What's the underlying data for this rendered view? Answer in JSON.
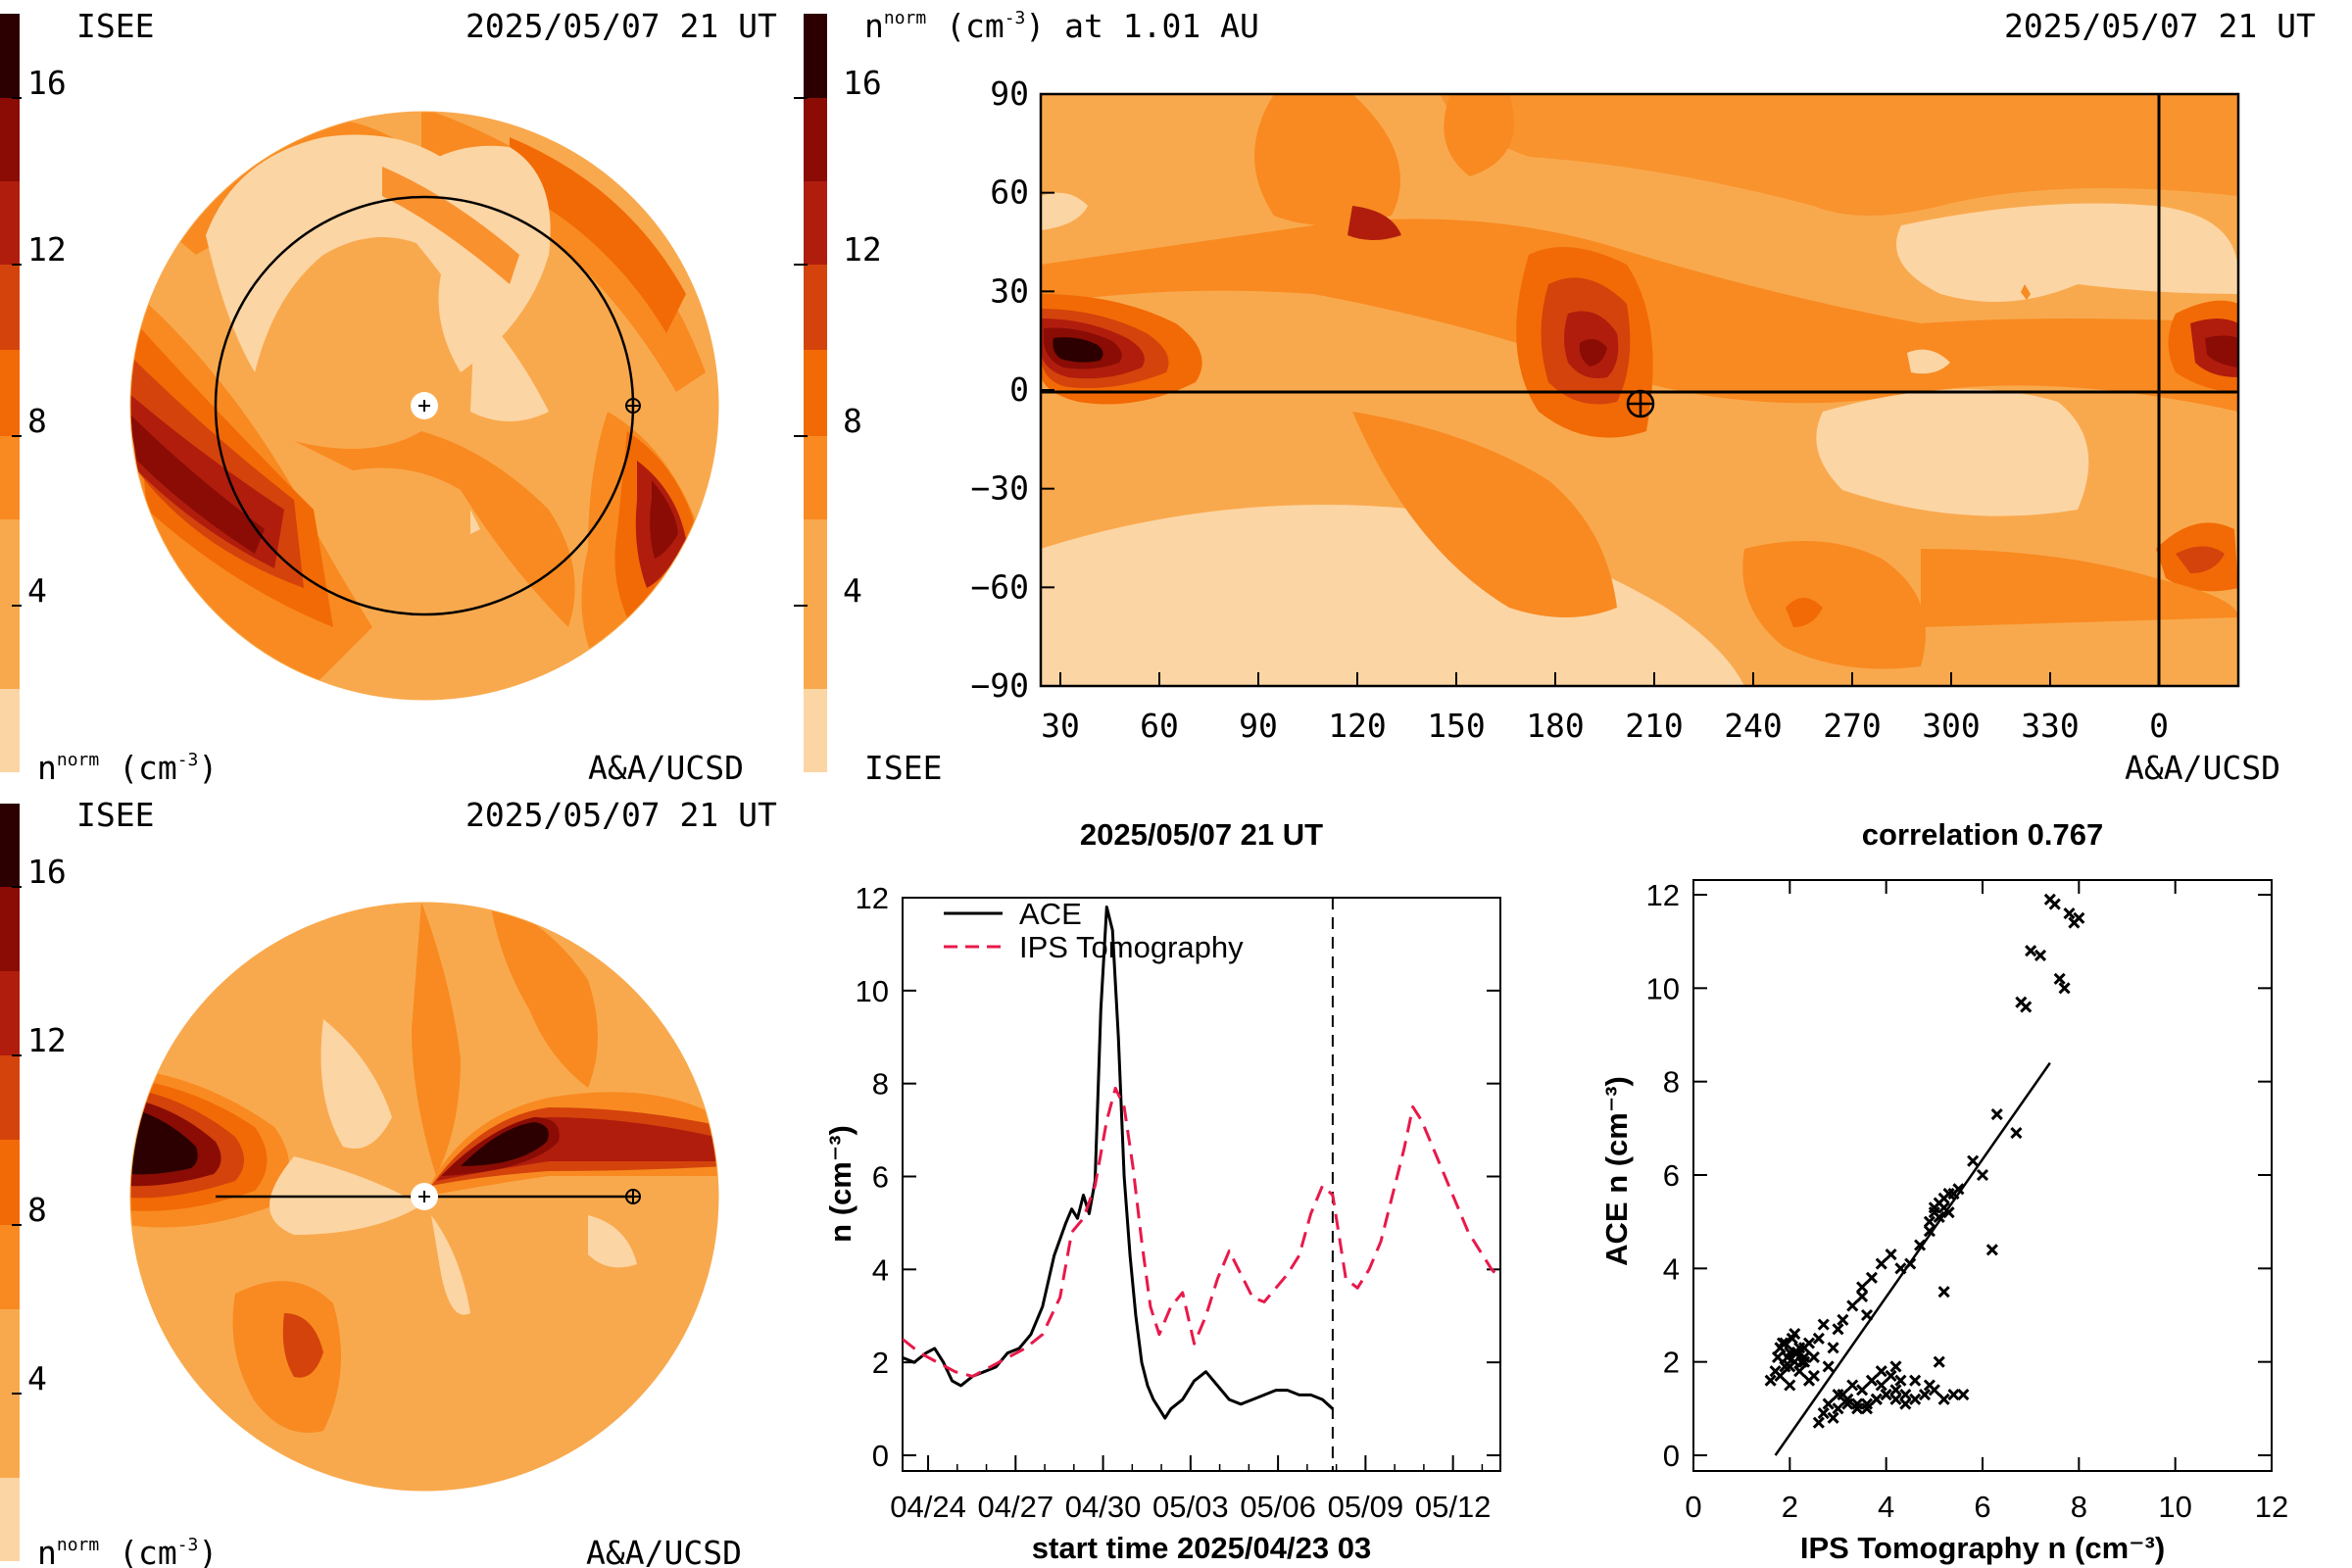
{
  "colorbar": {
    "colors": [
      "#fcd5a4",
      "#f9a94d",
      "#f88a21",
      "#f26a05",
      "#d4430b",
      "#b01d0d",
      "#8a0c05",
      "#570000",
      "#2c0000"
    ],
    "ticks": [
      "4",
      "8",
      "12",
      "16"
    ]
  },
  "panel_top_left": {
    "source": "ISEE",
    "timestamp": "2025/05/07 21 UT",
    "units": "n",
    "units_sup": "norm",
    "units_tail": "(cm",
    "units_exp": "-3",
    "units_close": ")",
    "credit": "A&A/UCSD"
  },
  "panel_top_right": {
    "title_n": "n",
    "title_sup": "norm",
    "title_mid": "(cm",
    "title_exp": "-3",
    "title_tail": ") at 1.01 AU",
    "timestamp": "2025/05/07 21 UT",
    "source": "ISEE",
    "credit": "A&A/UCSD",
    "y_ticks": [
      "90",
      "60",
      "30",
      "0",
      "−30",
      "−60",
      "−90"
    ],
    "x_ticks": [
      "30",
      "60",
      "90",
      "120",
      "150",
      "180",
      "210",
      "240",
      "270",
      "300",
      "330",
      "0"
    ]
  },
  "panel_bottom_left": {
    "source": "ISEE",
    "timestamp": "2025/05/07 21 UT",
    "units": "n",
    "units_sup": "norm",
    "units_tail": "(cm",
    "units_exp": "-3",
    "units_close": ")",
    "credit": "A&A/UCSD"
  },
  "chart_data": [
    {
      "type": "line",
      "title": "2025/05/07 21 UT",
      "xlabel": "start time 2025/04/23 03",
      "ylabel": "n (cm⁻³)",
      "ylim": [
        0,
        12
      ],
      "x_unit": "days",
      "xlim": [
        0,
        20.5
      ],
      "x_tick_labels": [
        "04/24",
        "04/27",
        "04/30",
        "05/03",
        "05/06",
        "05/09",
        "05/12"
      ],
      "x_tick_positions": [
        0.875,
        3.875,
        6.875,
        9.875,
        12.875,
        15.875,
        18.875
      ],
      "y_ticks": [
        "0",
        "2",
        "4",
        "6",
        "8",
        "10",
        "12"
      ],
      "now_marker_x": 14.75,
      "series": [
        {
          "name": "ACE",
          "color": "#000000",
          "style": "solid",
          "x": [
            0,
            0.4,
            0.8,
            1.1,
            1.4,
            1.7,
            2.0,
            2.4,
            2.8,
            3.2,
            3.6,
            4.0,
            4.4,
            4.8,
            5.2,
            5.6,
            5.8,
            6.0,
            6.2,
            6.4,
            6.6,
            6.8,
            7.0,
            7.2,
            7.4,
            7.6,
            7.8,
            8.0,
            8.2,
            8.4,
            8.6,
            8.8,
            9.0,
            9.2,
            9.6,
            10.0,
            10.4,
            10.8,
            11.2,
            11.6,
            12.0,
            12.4,
            12.8,
            13.2,
            13.6,
            14.0,
            14.4,
            14.75
          ],
          "y": [
            2.1,
            2.0,
            2.2,
            2.3,
            2.0,
            1.6,
            1.5,
            1.7,
            1.8,
            1.9,
            2.2,
            2.3,
            2.6,
            3.2,
            4.3,
            5.0,
            5.3,
            5.1,
            5.6,
            5.2,
            5.9,
            9.6,
            11.8,
            11.3,
            9.0,
            6.0,
            4.3,
            3.0,
            2.0,
            1.5,
            1.2,
            1.0,
            0.8,
            1.0,
            1.2,
            1.6,
            1.8,
            1.5,
            1.2,
            1.1,
            1.2,
            1.3,
            1.4,
            1.4,
            1.3,
            1.3,
            1.2,
            1.0
          ]
        },
        {
          "name": "IPS Tomography",
          "color": "#e8194a",
          "style": "dashed",
          "x": [
            0,
            0.6,
            1.2,
            1.8,
            2.4,
            3.0,
            3.6,
            4.2,
            4.8,
            5.4,
            5.8,
            6.2,
            6.6,
            7.0,
            7.3,
            7.6,
            7.9,
            8.2,
            8.5,
            8.8,
            9.2,
            9.6,
            10.0,
            10.4,
            10.8,
            11.2,
            11.6,
            12.0,
            12.4,
            12.8,
            13.2,
            13.6,
            14.0,
            14.4,
            14.75,
            15.2,
            15.6,
            16.0,
            16.4,
            16.8,
            17.2,
            17.5,
            17.8,
            18.2,
            18.6,
            19.0,
            19.4,
            19.8,
            20.2,
            20.5
          ],
          "y": [
            2.5,
            2.2,
            2.0,
            1.8,
            1.7,
            1.9,
            2.1,
            2.3,
            2.6,
            3.4,
            4.8,
            5.1,
            5.8,
            7.2,
            7.9,
            7.5,
            6.2,
            4.6,
            3.2,
            2.6,
            3.2,
            3.5,
            2.4,
            3.0,
            3.8,
            4.4,
            3.9,
            3.4,
            3.3,
            3.6,
            3.9,
            4.3,
            5.2,
            5.8,
            5.6,
            3.8,
            3.6,
            4.0,
            4.6,
            5.6,
            6.6,
            7.5,
            7.2,
            6.6,
            6.0,
            5.4,
            4.8,
            4.4,
            4.0,
            3.8
          ]
        }
      ]
    },
    {
      "type": "scatter",
      "title": "correlation 0.767",
      "xlabel": "IPS Tomography n (cm⁻³)",
      "ylabel": "ACE n (cm⁻³)",
      "xlim": [
        0,
        12
      ],
      "ylim": [
        0,
        12
      ],
      "x_ticks": [
        "0",
        "2",
        "4",
        "6",
        "8",
        "10",
        "12"
      ],
      "y_ticks": [
        "0",
        "2",
        "4",
        "6",
        "8",
        "10",
        "12"
      ],
      "regression": {
        "x": [
          1.7,
          7.4
        ],
        "y": [
          0,
          8.4
        ]
      },
      "points": {
        "x": [
          1.6,
          1.7,
          1.8,
          1.75,
          1.9,
          2.0,
          2.1,
          2.2,
          2.3,
          1.8,
          1.9,
          2.0,
          2.1,
          2.2,
          2.3,
          2.4,
          2.5,
          2.6,
          2.7,
          2.1,
          2.3,
          2.5,
          1.85,
          1.95,
          2.05,
          2.15,
          2.25,
          2.0,
          2.4,
          2.8,
          2.9,
          3.0,
          3.1,
          3.3,
          3.5,
          3.6,
          2.6,
          2.7,
          2.9,
          3.0,
          3.2,
          3.4,
          3.6,
          3.8,
          4.0,
          4.2,
          4.4,
          4.6,
          4.8,
          5.0,
          5.2,
          5.4,
          5.6,
          3.1,
          3.3,
          3.5,
          3.7,
          3.9,
          4.1,
          4.3,
          2.8,
          3.0,
          3.2,
          3.4,
          3.6,
          3.8,
          4.0,
          4.2,
          4.4,
          3.5,
          3.7,
          3.9,
          4.1,
          4.3,
          4.5,
          4.7,
          4.9,
          5.0,
          5.1,
          5.2,
          5.3,
          4.9,
          5.0,
          5.1,
          5.2,
          5.3,
          5.4,
          5.5,
          5.2,
          5.8,
          6.2,
          6.0,
          6.3,
          6.7,
          6.8,
          6.9,
          7.0,
          7.2,
          7.4,
          7.5,
          7.6,
          7.8,
          7.9,
          8.0,
          7.7,
          3.9,
          4.2,
          4.6,
          4.9,
          5.1
        ],
        "y": [
          1.6,
          1.8,
          1.7,
          2.1,
          1.9,
          2.2,
          2.0,
          1.8,
          2.1,
          2.3,
          2.4,
          1.9,
          2.2,
          2.3,
          2.0,
          2.4,
          2.1,
          2.5,
          2.8,
          2.6,
          2.3,
          1.7,
          2.4,
          2.1,
          2.5,
          2.2,
          2.0,
          1.5,
          1.6,
          1.9,
          2.3,
          2.7,
          2.9,
          3.2,
          3.4,
          3.0,
          0.7,
          0.9,
          0.8,
          1.0,
          1.1,
          1.0,
          1.1,
          1.2,
          1.3,
          1.4,
          1.3,
          1.2,
          1.3,
          1.4,
          1.2,
          1.3,
          1.3,
          1.3,
          1.5,
          1.4,
          1.6,
          1.5,
          1.7,
          1.6,
          1.1,
          1.3,
          1.2,
          1.1,
          1.0,
          1.2,
          1.3,
          1.2,
          1.1,
          3.6,
          3.8,
          4.1,
          4.3,
          4.0,
          4.1,
          4.5,
          4.8,
          5.2,
          5.4,
          5.3,
          5.6,
          5.0,
          5.3,
          5.1,
          5.5,
          5.2,
          5.6,
          5.7,
          3.5,
          6.3,
          4.4,
          6.0,
          7.3,
          6.9,
          9.7,
          9.6,
          10.8,
          10.7,
          11.9,
          11.8,
          10.2,
          11.6,
          11.4,
          11.5,
          10.0,
          1.8,
          1.9,
          1.6,
          1.5,
          2.0
        ]
      }
    }
  ]
}
